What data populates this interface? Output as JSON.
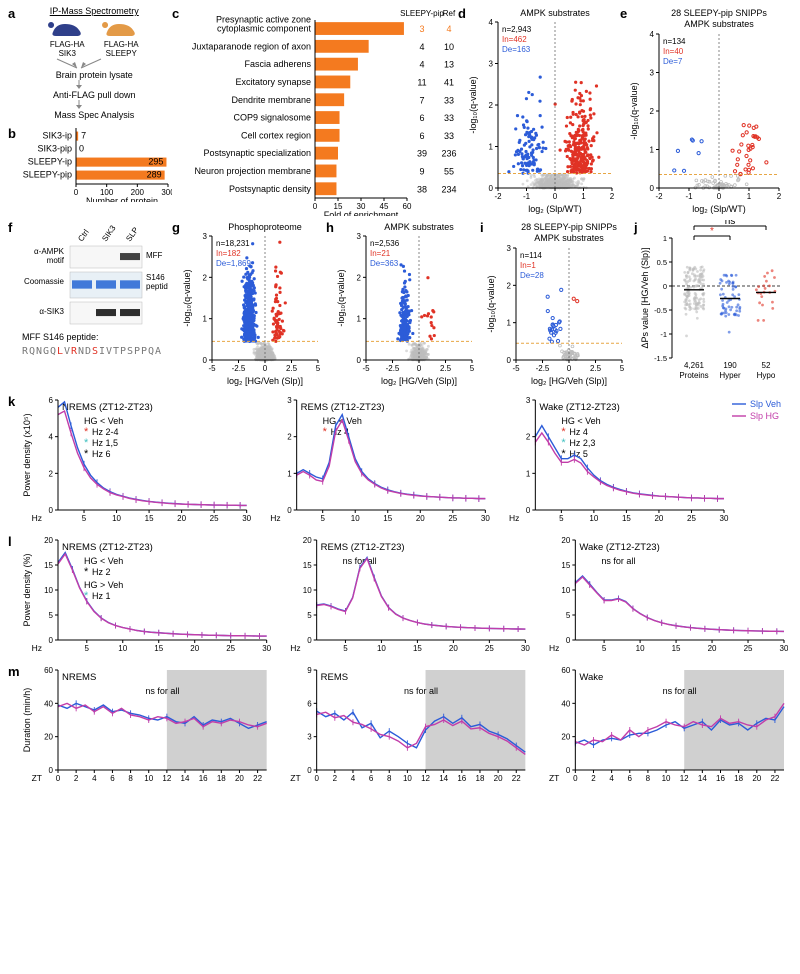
{
  "colors": {
    "orange": "#f47a1f",
    "red": "#e03225",
    "blue": "#2c5cd8",
    "magenta": "#c23da9",
    "cyan": "#41c0c0",
    "gray": "#bdbdbd",
    "dash_orange": "#e7a644",
    "band_gray": "#d0d0d0"
  },
  "a": {
    "label": "a",
    "title": "IP-Mass Spectrometry",
    "mouse_left_label": "FLAG-HA\nSIK3",
    "mouse_right_label": "FLAG-HA\nSLEEPY",
    "step1": "Brain protein lysate",
    "step2": "Anti-FLAG pull down",
    "step3": "Mass Spec Analysis"
  },
  "b": {
    "label": "b",
    "xlabel": "Number of protein",
    "xlim": [
      0,
      300
    ],
    "xticks": [
      0,
      100,
      200,
      300
    ],
    "categories": [
      "SIK3-ip",
      "SIK3-pip",
      "SLEEPY-ip",
      "SLEEPY-pip"
    ],
    "values": [
      7,
      0,
      295,
      289
    ],
    "bar_labels": [
      "7",
      "0",
      "295",
      "289"
    ],
    "bar_color": "#f47a1f"
  },
  "c": {
    "label": "c",
    "xlabel": "Fold of enrichment",
    "xlim": [
      0,
      60
    ],
    "xticks": [
      0,
      15,
      30,
      45,
      60
    ],
    "header_left": "SLEEPY-pip",
    "header_right": "Ref",
    "rows": [
      {
        "term": "Presynaptic active zone\ncytoplasmic component",
        "fold": 58,
        "pip": 3,
        "ref": 4
      },
      {
        "term": "Juxtaparanode region of axon",
        "fold": 35,
        "pip": 4,
        "ref": 10
      },
      {
        "term": "Fascia adherens",
        "fold": 28,
        "pip": 4,
        "ref": 13
      },
      {
        "term": "Excitatory synapse",
        "fold": 23,
        "pip": 11,
        "ref": 41
      },
      {
        "term": "Dendrite membrane",
        "fold": 19,
        "pip": 7,
        "ref": 33
      },
      {
        "term": "COP9 signalosome",
        "fold": 16,
        "pip": 6,
        "ref": 33
      },
      {
        "term": "Cell cortex region",
        "fold": 16,
        "pip": 6,
        "ref": 33
      },
      {
        "term": "Postsynaptic specialization",
        "fold": 15,
        "pip": 39,
        "ref": 236
      },
      {
        "term": "Neuron projection membrane",
        "fold": 14,
        "pip": 9,
        "ref": 55
      },
      {
        "term": "Postsynaptic density",
        "fold": 14,
        "pip": 38,
        "ref": 234
      }
    ],
    "bar_color": "#f47a1f"
  },
  "d": {
    "label": "d",
    "title": "AMPK substrates",
    "xlim": [
      -2,
      2
    ],
    "xticks": [
      -2,
      -1,
      0,
      1,
      2
    ],
    "ylim": [
      0,
      4
    ],
    "yticks": [
      0,
      1,
      2,
      3,
      4
    ],
    "xlabel": "log₂ (Slp/WT)",
    "ylabel": "-log₁₀(q-value)",
    "counts": {
      "n": "n=2,943",
      "In": "In=462",
      "De": "De=163"
    },
    "thresh_y": 0.35
  },
  "e": {
    "label": "e",
    "title_top": "28 SLEEPY-pip SNIPPs",
    "title_sub": "AMPK substrates",
    "xlim": [
      -2,
      2
    ],
    "xticks": [
      -2,
      -1,
      0,
      1,
      2
    ],
    "ylim": [
      0,
      4
    ],
    "yticks": [
      0,
      1,
      2,
      3,
      4
    ],
    "xlabel": "log₂ (Slp/WT)",
    "ylabel": "-log₁₀(q-value)",
    "counts": {
      "n": "n=134",
      "In": "In=40",
      "De": "De=7"
    },
    "thresh_y": 0.35
  },
  "f": {
    "label": "f",
    "lanes": [
      "Ctrl",
      "SIK3",
      "SLP"
    ],
    "blot_labels": [
      "α-AMPK\nmotif",
      "Coomassie",
      "α-SIK3"
    ],
    "side_labels": [
      "MFF",
      "S146\npeptide"
    ],
    "peptide_title": "MFF S146 peptide:",
    "peptide_seq": "RQNGQLVRNDSIVTPSPPQA",
    "peptide_highlight_idx": [
      5,
      7,
      10
    ]
  },
  "g": {
    "label": "g",
    "title": "Phosphoproteome",
    "xlim": [
      -5,
      5
    ],
    "xticks": [
      -5,
      -2.5,
      0,
      2.5,
      5
    ],
    "ylim": [
      0,
      3
    ],
    "yticks": [
      0,
      1,
      2,
      3
    ],
    "xlabel": "log₂ [HG/Veh (Slp)]",
    "ylabel": "-log₁₀(q-value)",
    "counts": {
      "n": "n=18,231",
      "In": "In=182",
      "De": "De=1,869"
    },
    "thresh_y": 0.45
  },
  "h": {
    "label": "h",
    "title": "AMPK substrates",
    "xlim": [
      -5,
      5
    ],
    "xticks": [
      -5,
      -2.5,
      0,
      2.5,
      5
    ],
    "ylim": [
      0,
      3
    ],
    "yticks": [
      0,
      1,
      2,
      3
    ],
    "xlabel": "log₂ [HG/Veh (Slp)]",
    "ylabel": "-log₁₀(q-value)",
    "counts": {
      "n": "n=2,536",
      "In": "In=21",
      "De": "De=363"
    },
    "thresh_y": 0.45
  },
  "i": {
    "label": "i",
    "title_top": "28 SLEEPY-pip SNIPPs",
    "title_sub": "AMPK substrates",
    "xlim": [
      -5,
      5
    ],
    "xticks": [
      -5,
      -2.5,
      0,
      2.5,
      5
    ],
    "ylim": [
      0,
      3
    ],
    "yticks": [
      0,
      1,
      2,
      3
    ],
    "xlabel": "log₂ [HG/Veh (Slp)]",
    "ylabel": "-log₁₀(q-value)",
    "counts": {
      "n": "n=114",
      "In": "In=1",
      "De": "De=28"
    },
    "thresh_y": 0.45
  },
  "j": {
    "label": "j",
    "ylabel": "ΔPs value [HG/Veh (Slp)]",
    "ylim": [
      -1.5,
      1
    ],
    "yticks": [
      -1.5,
      -1.0,
      -0.5,
      0,
      0.5,
      1.0
    ],
    "groups": [
      {
        "name": "Proteins",
        "n": "4,261"
      },
      {
        "name": "Hyper",
        "n": "190"
      },
      {
        "name": "Hypo",
        "n": "52"
      }
    ],
    "annot": [
      {
        "pair": [
          0,
          1
        ],
        "text": "*",
        "color": "#e03225"
      },
      {
        "pair": [
          0,
          2
        ],
        "text": "ns",
        "color": "#000"
      }
    ]
  },
  "k": {
    "label": "k"
  },
  "l": {
    "label": "l"
  },
  "m": {
    "label": "m"
  },
  "psd_legend": {
    "a": "Slp Veh",
    "acolor": "#2c5cd8",
    "b": "Slp HG",
    "bcolor": "#c23da9"
  },
  "k_rows": [
    {
      "title": "NREMS (ZT12-ZT23)",
      "ylabel": "Power density (x10⁵)",
      "ylim": [
        0,
        6
      ],
      "yticks": [
        0,
        2,
        4,
        6
      ],
      "box": {
        "t": "HG < Veh",
        "lines": [
          [
            "Hz 2-4",
            "red"
          ],
          [
            "Hz 1,5",
            "cyan"
          ],
          [
            "Hz 6",
            "blk"
          ]
        ]
      },
      "shape_a": [
        5.6,
        5.9,
        4.6,
        3.4,
        2.5,
        1.9,
        1.5,
        1.2,
        1.0,
        0.85,
        0.75,
        0.65,
        0.58,
        0.52,
        0.47,
        0.43,
        0.4,
        0.37,
        0.35,
        0.33,
        0.31,
        0.3,
        0.29,
        0.28,
        0.27,
        0.27,
        0.26,
        0.26,
        0.25,
        0.25
      ],
      "shape_b": [
        5.2,
        5.4,
        4.2,
        3.1,
        2.3,
        1.75,
        1.4,
        1.15,
        0.95,
        0.82,
        0.73,
        0.63,
        0.56,
        0.5,
        0.46,
        0.42,
        0.39,
        0.36,
        0.34,
        0.32,
        0.31,
        0.3,
        0.29,
        0.28,
        0.27,
        0.27,
        0.26,
        0.26,
        0.25,
        0.25
      ]
    },
    {
      "title": "REMS (ZT12-ZT23)",
      "ylabel": "",
      "ylim": [
        0,
        3
      ],
      "yticks": [
        0,
        1,
        2,
        3
      ],
      "box": {
        "t": "HG < Veh",
        "lines": [
          [
            "Hz 4",
            "red"
          ]
        ]
      },
      "shape_a": [
        1.0,
        1.1,
        1.0,
        0.9,
        0.85,
        1.3,
        2.3,
        2.6,
        2.0,
        1.4,
        1.05,
        0.85,
        0.72,
        0.62,
        0.55,
        0.5,
        0.46,
        0.43,
        0.41,
        0.39,
        0.37,
        0.36,
        0.35,
        0.34,
        0.33,
        0.33,
        0.32,
        0.32,
        0.31,
        0.31
      ],
      "shape_b": [
        0.95,
        1.05,
        0.95,
        0.82,
        0.78,
        1.2,
        2.15,
        2.45,
        1.9,
        1.32,
        1.0,
        0.82,
        0.7,
        0.6,
        0.53,
        0.49,
        0.45,
        0.42,
        0.4,
        0.38,
        0.37,
        0.36,
        0.35,
        0.34,
        0.33,
        0.33,
        0.32,
        0.32,
        0.31,
        0.31
      ]
    },
    {
      "title": "Wake (ZT12-ZT23)",
      "ylabel": "",
      "ylim": [
        0,
        3
      ],
      "yticks": [
        0,
        1,
        2,
        3
      ],
      "box": {
        "t": "HG < Veh",
        "lines": [
          [
            "Hz 4",
            "red"
          ],
          [
            "Hz 2,3",
            "cyan"
          ],
          [
            "Hz 5",
            "blk"
          ]
        ]
      },
      "shape_a": [
        2.0,
        2.3,
        2.0,
        1.7,
        1.4,
        1.4,
        1.5,
        1.4,
        1.15,
        0.95,
        0.8,
        0.7,
        0.62,
        0.56,
        0.51,
        0.47,
        0.44,
        0.42,
        0.4,
        0.38,
        0.37,
        0.36,
        0.35,
        0.34,
        0.33,
        0.33,
        0.32,
        0.32,
        0.31,
        0.31
      ],
      "shape_b": [
        1.85,
        2.1,
        1.85,
        1.55,
        1.3,
        1.3,
        1.38,
        1.28,
        1.05,
        0.9,
        0.77,
        0.67,
        0.6,
        0.54,
        0.5,
        0.46,
        0.43,
        0.41,
        0.39,
        0.38,
        0.37,
        0.36,
        0.35,
        0.34,
        0.33,
        0.33,
        0.32,
        0.32,
        0.31,
        0.31
      ]
    }
  ],
  "l_rows": [
    {
      "title": "NREMS (ZT12-ZT23)",
      "ylabel": "Power density (%)",
      "ylim": [
        0,
        20
      ],
      "yticks": [
        0,
        5,
        10,
        15,
        20
      ],
      "box": {
        "t": "HG < Veh",
        "lines": [
          [
            "Hz 2",
            "blk"
          ]
        ],
        "t2": "HG > Veh",
        "lines2": [
          [
            "Hz 1",
            "cyan"
          ]
        ]
      },
      "shape_a": [
        15.5,
        17.5,
        14.2,
        10.5,
        7.8,
        5.8,
        4.4,
        3.5,
        2.9,
        2.5,
        2.2,
        1.9,
        1.7,
        1.55,
        1.45,
        1.35,
        1.25,
        1.18,
        1.12,
        1.06,
        1.01,
        0.97,
        0.93,
        0.9,
        0.87,
        0.85,
        0.83,
        0.81,
        0.79,
        0.78
      ],
      "shape_b": [
        15.2,
        17.2,
        14.0,
        10.4,
        7.7,
        5.7,
        4.35,
        3.45,
        2.88,
        2.48,
        2.18,
        1.88,
        1.68,
        1.54,
        1.44,
        1.34,
        1.24,
        1.17,
        1.11,
        1.05,
        1.01,
        0.97,
        0.93,
        0.9,
        0.87,
        0.85,
        0.83,
        0.81,
        0.79,
        0.78
      ]
    },
    {
      "title": "REMS (ZT12-ZT23)",
      "ylabel": "",
      "ylim": [
        0,
        20
      ],
      "yticks": [
        0,
        5,
        10,
        15,
        20
      ],
      "box": {
        "t": "ns for all",
        "lines": []
      },
      "shape_a": [
        7.0,
        7.2,
        6.8,
        6.2,
        5.8,
        8.5,
        14.5,
        16.5,
        12.5,
        8.8,
        6.5,
        5.2,
        4.4,
        3.9,
        3.5,
        3.2,
        3.0,
        2.85,
        2.72,
        2.62,
        2.54,
        2.47,
        2.41,
        2.36,
        2.32,
        2.28,
        2.25,
        2.22,
        2.2,
        2.18
      ],
      "shape_b": [
        6.9,
        7.1,
        6.7,
        6.1,
        5.7,
        8.4,
        14.3,
        16.3,
        12.3,
        8.7,
        6.45,
        5.15,
        4.37,
        3.88,
        3.48,
        3.18,
        2.98,
        2.84,
        2.71,
        2.61,
        2.53,
        2.46,
        2.41,
        2.36,
        2.32,
        2.28,
        2.25,
        2.22,
        2.2,
        2.18
      ]
    },
    {
      "title": "Wake (ZT12-ZT23)",
      "ylabel": "",
      "ylim": [
        0,
        20
      ],
      "yticks": [
        0,
        5,
        10,
        15,
        20
      ],
      "box": {
        "t": "ns for all",
        "lines": []
      },
      "shape_a": [
        11.5,
        12.8,
        11.2,
        9.5,
        8.0,
        8.0,
        8.3,
        7.7,
        6.3,
        5.3,
        4.5,
        3.9,
        3.45,
        3.1,
        2.85,
        2.65,
        2.48,
        2.35,
        2.24,
        2.15,
        2.07,
        2.0,
        1.94,
        1.89,
        1.85,
        1.81,
        1.78,
        1.75,
        1.73,
        1.71
      ],
      "shape_b": [
        11.3,
        12.6,
        11.0,
        9.4,
        7.9,
        7.9,
        8.2,
        7.6,
        6.25,
        5.27,
        4.47,
        3.88,
        3.44,
        3.09,
        2.84,
        2.64,
        2.47,
        2.34,
        2.23,
        2.14,
        2.07,
        2.0,
        1.94,
        1.89,
        1.85,
        1.81,
        1.78,
        1.75,
        1.73,
        1.71
      ]
    }
  ],
  "m_rows": [
    {
      "title": "NREMS",
      "ylabel": "Duration (min/h)",
      "ylim": [
        0,
        60
      ],
      "yticks": [
        0,
        20,
        40,
        60
      ],
      "box": {
        "t": "ns for all",
        "lines": []
      },
      "a": [
        39,
        37,
        40,
        38,
        36,
        39,
        35,
        36,
        34,
        33,
        31,
        30,
        32,
        29,
        28,
        32,
        27,
        30,
        29,
        31,
        28,
        25,
        27,
        29
      ],
      "b": [
        38,
        40,
        37,
        39,
        35,
        38,
        34,
        37,
        33,
        32,
        30,
        32,
        31,
        28,
        29,
        31,
        26,
        29,
        28,
        30,
        29,
        27,
        26,
        28
      ]
    },
    {
      "title": "REMS",
      "ylabel": "",
      "ylim": [
        0,
        9
      ],
      "yticks": [
        0,
        3,
        6,
        9
      ],
      "box": {
        "t": "ns for all",
        "lines": []
      },
      "a": [
        5.3,
        4.8,
        5.1,
        4.5,
        5.2,
        3.8,
        4.2,
        2.9,
        3.5,
        3.0,
        2.4,
        2.0,
        3.6,
        4.4,
        4.8,
        4.2,
        4.7,
        3.9,
        4.1,
        3.5,
        3.2,
        2.8,
        2.2,
        1.6
      ],
      "b": [
        5.0,
        5.2,
        4.7,
        4.9,
        4.3,
        4.1,
        3.7,
        3.2,
        3.0,
        2.6,
        2.0,
        2.4,
        3.9,
        4.1,
        4.5,
        4.0,
        4.4,
        3.7,
        3.8,
        3.3,
        3.0,
        2.6,
        2.0,
        1.4
      ]
    },
    {
      "title": "Wake",
      "ylabel": "",
      "ylim": [
        0,
        60
      ],
      "yticks": [
        0,
        20,
        40,
        60
      ],
      "box": {
        "t": "ns for all",
        "lines": []
      },
      "a": [
        16,
        18,
        15,
        18,
        19,
        18,
        21,
        22,
        22,
        24,
        27,
        29,
        25,
        27,
        29,
        24,
        30,
        27,
        28,
        24,
        28,
        31,
        30,
        38
      ],
      "b": [
        17,
        15,
        18,
        17,
        21,
        18,
        24,
        20,
        24,
        26,
        29,
        27,
        26,
        29,
        27,
        26,
        31,
        28,
        29,
        27,
        26,
        30,
        32,
        40
      ]
    }
  ]
}
